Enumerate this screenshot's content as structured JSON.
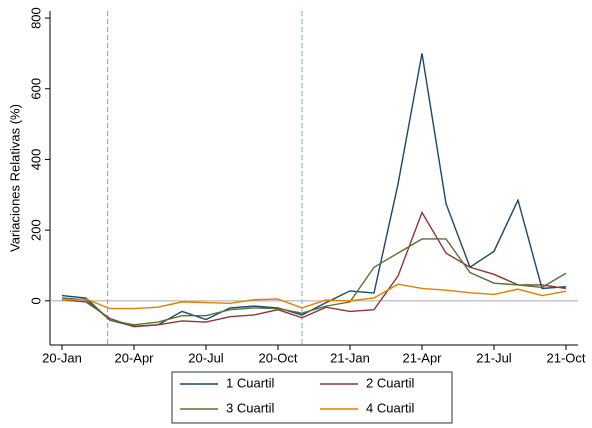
{
  "chart_data": {
    "type": "line",
    "y_label": "Variaciones Relativas (%)",
    "categories": [
      "20-Jan",
      null,
      null,
      "20-Apr",
      null,
      null,
      "20-Jul",
      null,
      null,
      "20-Oct",
      null,
      null,
      "21-Jan",
      null,
      null,
      "21-Apr",
      null,
      null,
      "21-Jul",
      null,
      null,
      "21-Oct"
    ],
    "series": [
      {
        "name": "1 Cuartil",
        "color": "#1a476f",
        "values": [
          15,
          8,
          -55,
          -72,
          -68,
          -30,
          -53,
          -20,
          -15,
          -20,
          -40,
          -5,
          28,
          22,
          330,
          700,
          275,
          95,
          140,
          285,
          35,
          40
        ]
      },
      {
        "name": "2 Cuartil",
        "color": "#90353b",
        "values": [
          3,
          -3,
          -50,
          -73,
          -68,
          -57,
          -60,
          -45,
          -40,
          -25,
          -48,
          -18,
          -30,
          -25,
          70,
          250,
          135,
          95,
          75,
          45,
          45,
          35
        ]
      },
      {
        "name": "3 Cuartil",
        "color": "#55752f",
        "values": [
          8,
          3,
          -55,
          -68,
          -60,
          -42,
          -42,
          -25,
          -20,
          -22,
          -35,
          -15,
          -3,
          95,
          135,
          175,
          175,
          80,
          50,
          45,
          38,
          78
        ]
      },
      {
        "name": "4 Cuartil",
        "color": "#e37e00",
        "values": [
          2,
          5,
          -22,
          -22,
          -18,
          -3,
          -5,
          -7,
          3,
          5,
          -20,
          2,
          0,
          8,
          47,
          35,
          30,
          23,
          18,
          33,
          15,
          27
        ]
      }
    ],
    "ylim": [
      -125,
      820
    ],
    "yticks": [
      0,
      200,
      400,
      600,
      800
    ],
    "vlines": [
      {
        "x": 1.9,
        "color": "#999999"
      },
      {
        "x": 10,
        "color": "#6ab0de"
      }
    ],
    "hline": {
      "y": 0,
      "color": "#aaaaaa"
    }
  }
}
